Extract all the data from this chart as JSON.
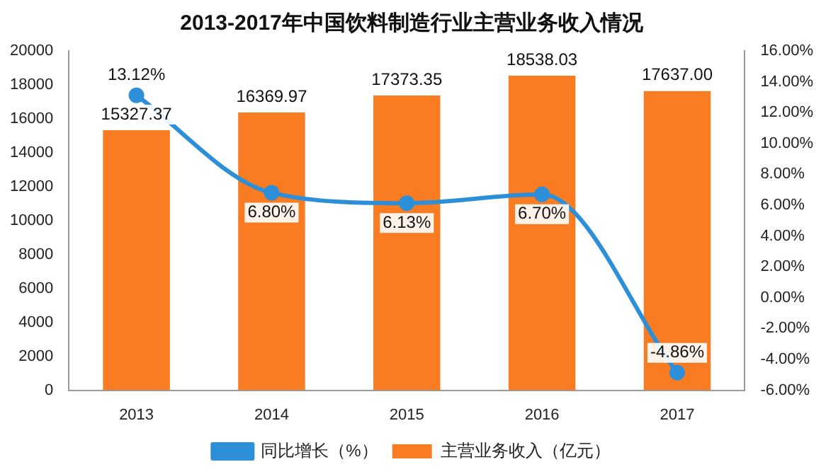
{
  "chart_data": {
    "type": "bar",
    "title": "2013-2017年中国饮料制造行业主营业务收入情况",
    "categories": [
      "2013",
      "2014",
      "2015",
      "2016",
      "2017"
    ],
    "series": [
      {
        "name": "主营业务收入（亿元）",
        "color": "#f97b22",
        "values": [
          15327.37,
          16369.97,
          17373.35,
          18538.03,
          17637.0
        ],
        "value_labels": [
          "15327.37",
          "16369.97",
          "17373.35",
          "18538.03",
          "17637.00"
        ]
      },
      {
        "name": "同比增长（%）",
        "type": "line",
        "axis": "y2",
        "color": "#2e8fd9",
        "values": [
          13.12,
          6.8,
          6.13,
          6.7,
          -4.86
        ],
        "value_labels": [
          "13.12%",
          "6.80%",
          "6.13%",
          "6.70%",
          "-4.86%"
        ]
      }
    ],
    "ylim": [
      0,
      20000
    ],
    "yticks": [
      0,
      2000,
      4000,
      6000,
      8000,
      10000,
      12000,
      14000,
      16000,
      18000,
      20000
    ],
    "y2lim": [
      -6,
      16
    ],
    "y2ticks": [
      {
        "value": -6,
        "label": "-6.00%"
      },
      {
        "value": -4,
        "label": "-4.00%"
      },
      {
        "value": -2,
        "label": "-2.00%"
      },
      {
        "value": 0,
        "label": "0.00%"
      },
      {
        "value": 2,
        "label": "2.00%"
      },
      {
        "value": 4,
        "label": "4.00%"
      },
      {
        "value": 6,
        "label": "6.00%"
      },
      {
        "value": 8,
        "label": "8.00%"
      },
      {
        "value": 10,
        "label": "10.00%"
      },
      {
        "value": 12,
        "label": "12.00%"
      },
      {
        "value": 14,
        "label": "14.00%"
      },
      {
        "value": 16,
        "label": "16.00%"
      }
    ],
    "grid": false,
    "legend": "bottom",
    "marker": "circle",
    "line_style": "solid"
  }
}
